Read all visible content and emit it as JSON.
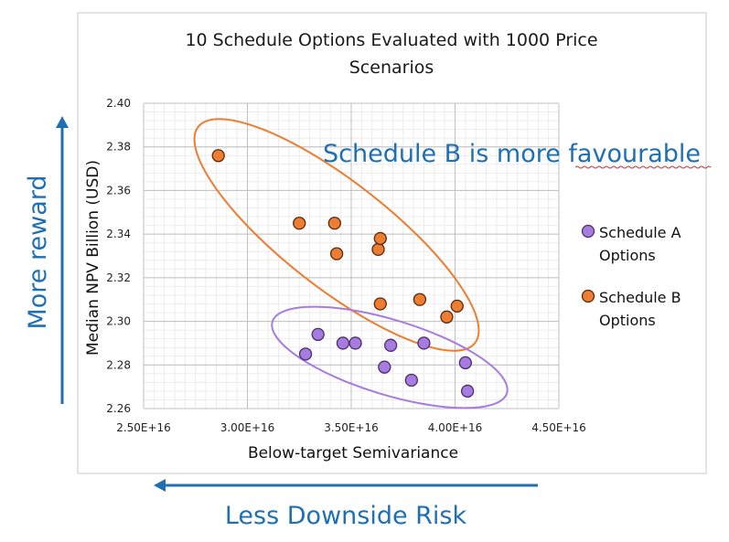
{
  "chart_data": {
    "type": "scatter",
    "title_lines": [
      "10 Schedule Options Evaluated with 1000 Price",
      "Scenarios"
    ],
    "xlabel": "Below-target Semivariance",
    "ylabel": "Median NPV Billion (USD)",
    "xlim": [
      2.5e+16,
      4.5e+16
    ],
    "ylim": [
      2.26,
      2.4
    ],
    "x_ticks": [
      2.5e+16,
      3e+16,
      3.5e+16,
      4e+16,
      4.5e+16
    ],
    "x_tick_labels": [
      "2.50E+16",
      "3.00E+16",
      "3.50E+16",
      "4.00E+16",
      "4.50E+16"
    ],
    "y_ticks": [
      2.26,
      2.28,
      2.3,
      2.32,
      2.34,
      2.36,
      2.38,
      2.4
    ],
    "y_tick_labels": [
      "2.26",
      "2.28",
      "2.30",
      "2.32",
      "2.34",
      "2.36",
      "2.38",
      "2.40"
    ],
    "grid": true,
    "legend_position": "right",
    "series": [
      {
        "name_lines": [
          "Schedule A",
          "Options"
        ],
        "color": "#a77be0",
        "edge": "#4a2f6b",
        "points": [
          {
            "x": 3.28e+16,
            "y": 2.285
          },
          {
            "x": 3.34e+16,
            "y": 2.294
          },
          {
            "x": 3.46e+16,
            "y": 2.29
          },
          {
            "x": 3.52e+16,
            "y": 2.29
          },
          {
            "x": 3.66e+16,
            "y": 2.279
          },
          {
            "x": 3.69e+16,
            "y": 2.289
          },
          {
            "x": 3.79e+16,
            "y": 2.273
          },
          {
            "x": 3.85e+16,
            "y": 2.29
          },
          {
            "x": 4.05e+16,
            "y": 2.281
          },
          {
            "x": 4.06e+16,
            "y": 2.268
          }
        ]
      },
      {
        "name_lines": [
          "Schedule B",
          "Options"
        ],
        "color": "#ed7d31",
        "edge": "#5a2a10",
        "points": [
          {
            "x": 2.86e+16,
            "y": 2.376
          },
          {
            "x": 3.25e+16,
            "y": 2.345
          },
          {
            "x": 3.42e+16,
            "y": 2.345
          },
          {
            "x": 3.43e+16,
            "y": 2.331
          },
          {
            "x": 3.63e+16,
            "y": 2.333
          },
          {
            "x": 3.64e+16,
            "y": 2.338
          },
          {
            "x": 3.64e+16,
            "y": 2.308
          },
          {
            "x": 3.83e+16,
            "y": 2.31
          },
          {
            "x": 3.96e+16,
            "y": 2.302
          },
          {
            "x": 4.01e+16,
            "y": 2.307
          }
        ]
      }
    ],
    "annotations": {
      "favourable": "Schedule B is more favourable",
      "reward": "More reward",
      "risk": "Less Downside Risk"
    }
  }
}
